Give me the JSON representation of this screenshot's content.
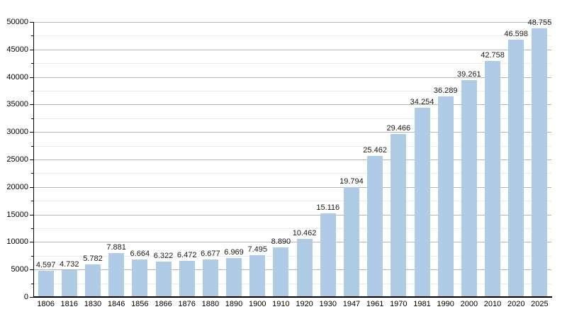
{
  "chart_data": {
    "type": "bar",
    "title": "",
    "xlabel": "",
    "ylabel": "",
    "categories": [
      "1806",
      "1816",
      "1830",
      "1846",
      "1856",
      "1866",
      "1876",
      "1880",
      "1890",
      "1900",
      "1910",
      "1920",
      "1930",
      "1947",
      "1961",
      "1970",
      "1981",
      "1990",
      "2000",
      "2010",
      "2020",
      "2025"
    ],
    "values": [
      4597,
      4732,
      5782,
      7881,
      6664,
      6322,
      6472,
      6677,
      6969,
      7495,
      8890,
      10462,
      15116,
      19794,
      25462,
      29466,
      34254,
      36289,
      39261,
      42758,
      46598,
      48755
    ],
    "value_labels": [
      "4.597",
      "4.732",
      "5.782",
      "7.881",
      "6.664",
      "6.322",
      "6.472",
      "6.677",
      "6.969",
      "7.495",
      "8.890",
      "10.462",
      "15.116",
      "19.794",
      "25.462",
      "29.466",
      "34.254",
      "36.289",
      "39.261",
      "42.758",
      "46.598",
      "48.755"
    ],
    "ylim": [
      0,
      50000
    ],
    "y_major_step": 5000,
    "y_minor_step": 2500,
    "y_tick_labels": [
      "0",
      "5000",
      "10000",
      "15000",
      "20000",
      "25000",
      "30000",
      "35000",
      "40000",
      "45000",
      "50000"
    ],
    "grid": "major-and-minor-horizontal",
    "legend": "none",
    "colors": {
      "bar_fill": "#b0cbe6",
      "major_gridline": "#b5b5b5",
      "minor_gridline": "#ebebeb",
      "axis": "#000000",
      "text": "#000000",
      "background": "#ffffff"
    }
  }
}
